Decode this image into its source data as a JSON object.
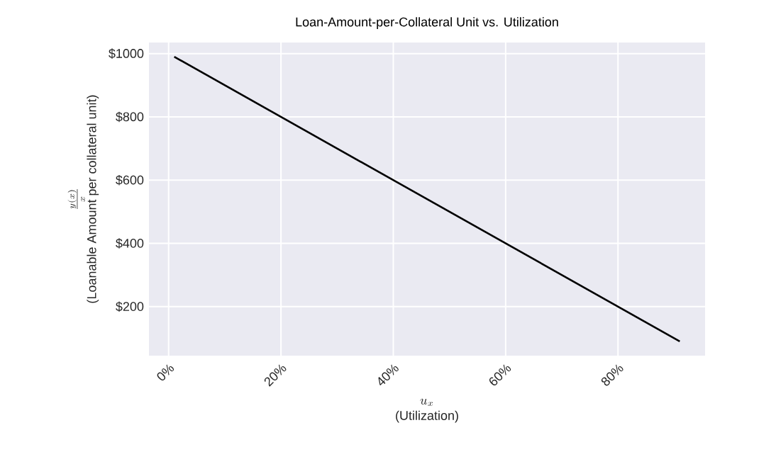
{
  "chart_data": {
    "type": "line",
    "title": "Loan-Amount-per-Collateral Unit vs. Utilization",
    "xlabel": [
      "u_x",
      "(Utilization)"
    ],
    "ylabel": [
      "\\frac{y(x)}{x}",
      "(Loanable Amount per collateral unit)"
    ],
    "x": [
      1,
      91
    ],
    "series": [
      {
        "color": "#000000",
        "values": [
          990,
          90
        ]
      }
    ],
    "xlim": [
      -3.5,
      95.5
    ],
    "ylim": [
      45,
      1035
    ],
    "xticks": [
      {
        "value": 0,
        "label": "0%"
      },
      {
        "value": 20,
        "label": "20%"
      },
      {
        "value": 40,
        "label": "40%"
      },
      {
        "value": 60,
        "label": "60%"
      },
      {
        "value": 80,
        "label": "80%"
      }
    ],
    "yticks": [
      {
        "value": 200,
        "label": "$200"
      },
      {
        "value": 400,
        "label": "$400"
      },
      {
        "value": 600,
        "label": "$600"
      },
      {
        "value": 800,
        "label": "$800"
      },
      {
        "value": 1000,
        "label": "$1000"
      }
    ],
    "grid": true
  }
}
